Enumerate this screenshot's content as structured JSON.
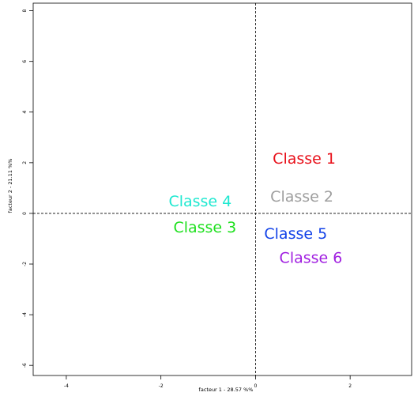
{
  "chart_data": {
    "type": "scatter",
    "xlabel": "facteur  1 - 28.57 %%",
    "ylabel": "facteur  2 - 21.11 %%",
    "xlim": [
      -4.7,
      3.3
    ],
    "ylim": [
      -6.4,
      8.3
    ],
    "x_ticks": [
      -4,
      -2,
      0,
      2
    ],
    "y_ticks": [
      -6,
      -4,
      -2,
      0,
      2,
      4,
      6,
      8
    ],
    "reference_lines": {
      "x": 0,
      "y": 0,
      "style": "dashed"
    },
    "grid": false,
    "points": [
      {
        "label": "Classe 1",
        "x": 1.03,
        "y": 2.15,
        "color": "#e8101a"
      },
      {
        "label": "Classe 2",
        "x": 0.98,
        "y": 0.65,
        "color": "#9e9e9e"
      },
      {
        "label": "Classe 4",
        "x": -1.17,
        "y": 0.47,
        "color": "#1ee8d0"
      },
      {
        "label": "Classe 3",
        "x": -1.07,
        "y": -0.57,
        "color": "#1ee01e"
      },
      {
        "label": "Classe 5",
        "x": 0.85,
        "y": -0.82,
        "color": "#1242e8"
      },
      {
        "label": "Classe 6",
        "x": 1.17,
        "y": -1.77,
        "color": "#a01ee0"
      }
    ]
  }
}
